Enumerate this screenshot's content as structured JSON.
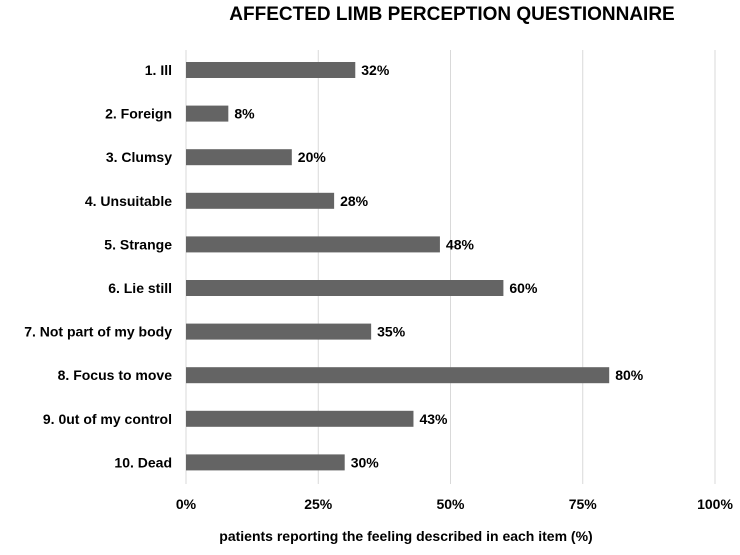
{
  "chart_data": {
    "type": "bar",
    "orientation": "horizontal",
    "title": "AFFECTED LIMB PERCEPTION QUESTIONNAIRE",
    "xlabel": "patients reporting the feeling described in each item (%)",
    "ylabel": "",
    "categories": [
      "1. Ill",
      "2. Foreign",
      "3. Clumsy",
      "4. Unsuitable",
      "5. Strange",
      "6. Lie still",
      "7. Not part of my body",
      "8. Focus to move",
      "9. 0ut of my control",
      "10. Dead"
    ],
    "values": [
      32,
      8,
      20,
      28,
      48,
      60,
      35,
      80,
      43,
      30
    ],
    "data_labels": [
      "32%",
      "8%",
      "20%",
      "28%",
      "48%",
      "60%",
      "35%",
      "80%",
      "43%",
      "30%"
    ],
    "xlim": [
      0,
      100
    ],
    "xticks": [
      0,
      25,
      50,
      75,
      100
    ],
    "xtick_labels": [
      "0%",
      "25%",
      "50%",
      "75%",
      "100%"
    ],
    "grid": true,
    "legend": false,
    "colors": {
      "bar": "#646464",
      "grid": "#d9d9d9"
    }
  }
}
